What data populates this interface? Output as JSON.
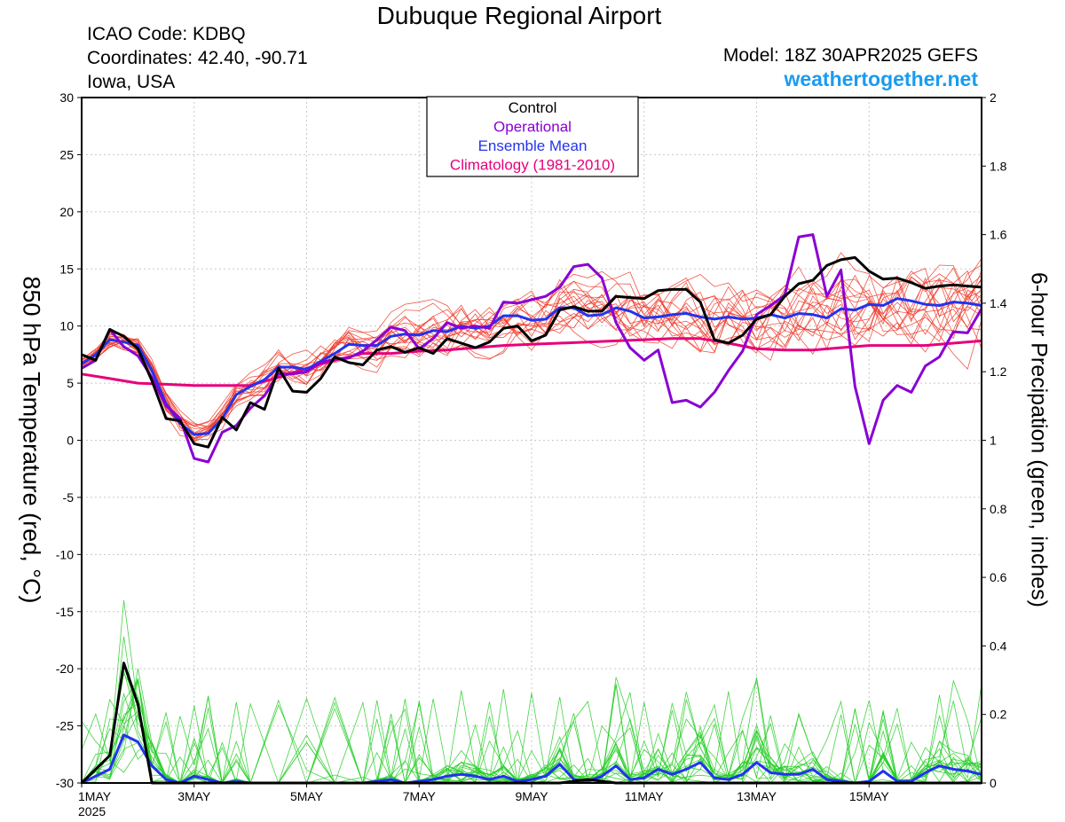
{
  "header": {
    "title": "Dubuque Regional Airport",
    "icao": "ICAO Code: KDBQ",
    "coords": "Coordinates: 42.40, -90.71",
    "region": "Iowa, USA",
    "model": "Model: 18Z 30APR2025 GEFS",
    "brand": "weathertogether.net"
  },
  "chart_data": {
    "type": "line",
    "ylabel_left": "850 hPa Temperature (red, °C)",
    "ylabel_right": "6-hour Precipation (green, inches)",
    "xlim": [
      0,
      16
    ],
    "ylim_left": [
      -30,
      30
    ],
    "ylim_right": [
      0,
      2
    ],
    "x_ticks": [
      {
        "x": 0,
        "label": "1MAY",
        "sub": "2025"
      },
      {
        "x": 2,
        "label": "3MAY"
      },
      {
        "x": 4,
        "label": "5MAY"
      },
      {
        "x": 6,
        "label": "7MAY"
      },
      {
        "x": 8,
        "label": "9MAY"
      },
      {
        "x": 10,
        "label": "11MAY"
      },
      {
        "x": 12,
        "label": "13MAY"
      },
      {
        "x": 14,
        "label": "15MAY"
      }
    ],
    "y_ticks_left": [
      "30",
      "25",
      "20",
      "15",
      "10",
      "5",
      "0",
      "-5",
      "-10",
      "-15",
      "-20",
      "-25",
      "-30"
    ],
    "y_ticks_right": [
      "2",
      "1.8",
      "1.6",
      "1.4",
      "1.2",
      "1",
      "0.8",
      "0.6",
      "0.4",
      "0.2",
      "0"
    ],
    "legend": [
      {
        "label": "Control",
        "color": "#000000"
      },
      {
        "label": "Operational",
        "color": "#8a00d4"
      },
      {
        "label": "Ensemble Mean",
        "color": "#2233ee"
      },
      {
        "label": "Climatology (1981-2010)",
        "color": "#e6007a"
      }
    ],
    "colors": {
      "members_temp": "#ef3a2a",
      "members_precip": "#22cc22"
    },
    "series": [
      {
        "name": "Control",
        "kind": "temperature",
        "x": [
          0,
          0.25,
          0.5,
          0.75,
          1,
          1.25,
          1.5,
          1.75,
          2,
          2.25,
          2.5,
          2.75,
          3,
          3.25,
          3.5,
          3.75,
          4,
          4.25,
          4.5,
          4.75,
          5,
          5.25,
          5.5,
          5.75,
          6,
          6.25,
          6.5,
          6.75,
          7,
          7.25,
          7.5,
          7.75,
          8,
          8.25,
          8.5,
          8.75,
          9,
          9.25,
          9.5,
          9.75,
          10,
          10.25,
          10.5,
          10.75,
          11,
          11.25,
          11.5,
          11.75,
          12,
          12.25,
          12.5,
          12.75,
          13,
          13.25,
          13.5,
          13.75,
          14,
          14.25,
          14.5,
          14.75,
          15,
          15.25,
          15.5,
          15.75,
          16
        ],
        "values": [
          7.5,
          7,
          9.7,
          9.1,
          8,
          5.2,
          1.9,
          1.7,
          -0.3,
          -0.6,
          2,
          0.9,
          3.3,
          2.7,
          6.3,
          4.3,
          4.2,
          5.4,
          7.3,
          6.8,
          6.6,
          7.9,
          8.2,
          7.7,
          8.1,
          7.6,
          8.9,
          8.5,
          8.1,
          8.6,
          9.8,
          10,
          8.7,
          9.2,
          11.4,
          11.7,
          11.3,
          11.3,
          12.6,
          12.5,
          12.4,
          13.1,
          13.2,
          13.2,
          12.1,
          8.8,
          8.5,
          9.2,
          10.6,
          11,
          12.6,
          13.7,
          14,
          15.3,
          15.8,
          16,
          14.8,
          14.1,
          14.2,
          13.8,
          13.3,
          13.5,
          13.6,
          13.5,
          13.4
        ]
      },
      {
        "name": "Operational",
        "kind": "temperature",
        "x": [
          0,
          0.25,
          0.5,
          0.75,
          1,
          1.25,
          1.5,
          1.75,
          2,
          2.25,
          2.5,
          2.75,
          3,
          3.25,
          3.5,
          3.75,
          4,
          4.25,
          4.5,
          4.75,
          5,
          5.25,
          5.5,
          5.75,
          6,
          6.25,
          6.5,
          6.75,
          7,
          7.25,
          7.5,
          7.75,
          8,
          8.25,
          8.5,
          8.75,
          9,
          9.25,
          9.5,
          9.75,
          10,
          10.25,
          10.5,
          10.75,
          11,
          11.25,
          11.5,
          11.75,
          12,
          12.25,
          12.5,
          12.75,
          13,
          13.25,
          13.5,
          13.75,
          14,
          14.25,
          14.5,
          14.75,
          15,
          15.25,
          15.5,
          15.75,
          16
        ],
        "values": [
          6.3,
          7,
          9.7,
          8.2,
          7.4,
          5.5,
          3,
          1.9,
          -1.6,
          -1.9,
          0.7,
          1.3,
          2.8,
          3.9,
          5.8,
          5.8,
          6,
          6.8,
          7.1,
          7.2,
          7.8,
          8.8,
          9.9,
          9.6,
          8,
          8.9,
          10.3,
          9.8,
          10,
          9.8,
          12.1,
          12,
          12.3,
          12.6,
          13.4,
          15.2,
          15.4,
          14.2,
          10.3,
          8.1,
          7,
          7.9,
          3.3,
          3.5,
          2.9,
          4.2,
          6.1,
          7.8,
          11,
          11.8,
          12.7,
          17.8,
          18,
          12.6,
          14.9,
          4.7,
          -0.3,
          3.5,
          4.8,
          4.2,
          6.5,
          7.3,
          9.5,
          9.4,
          11.5
        ]
      },
      {
        "name": "Ensemble Mean",
        "kind": "temperature",
        "x": [
          0,
          0.25,
          0.5,
          0.75,
          1,
          1.25,
          1.5,
          1.75,
          2,
          2.25,
          2.5,
          2.75,
          3,
          3.25,
          3.5,
          3.75,
          4,
          4.25,
          4.5,
          4.75,
          5,
          5.25,
          5.5,
          5.75,
          6,
          6.25,
          6.5,
          6.75,
          7,
          7.25,
          7.5,
          7.75,
          8,
          8.25,
          8.5,
          8.75,
          9,
          9.25,
          9.5,
          9.75,
          10,
          10.25,
          10.5,
          10.75,
          11,
          11.25,
          11.5,
          11.75,
          12,
          12.25,
          12.5,
          12.75,
          13,
          13.25,
          13.5,
          13.75,
          14,
          14.25,
          14.5,
          14.75,
          15,
          15.25,
          15.5,
          15.75,
          16
        ],
        "values": [
          6.7,
          7.5,
          8.8,
          8.6,
          8.3,
          6.1,
          3.2,
          1.5,
          0.5,
          0.6,
          1.9,
          4,
          4.7,
          5.3,
          6.4,
          6.4,
          6.2,
          6.9,
          7.6,
          8.4,
          8.3,
          8.3,
          9.1,
          9.3,
          9.2,
          9.6,
          9.5,
          10,
          9.8,
          10,
          10.9,
          10.9,
          10.5,
          10.6,
          11.6,
          11.6,
          10.9,
          11,
          11.6,
          11.3,
          10.7,
          10.8,
          11,
          11.1,
          10.8,
          10.6,
          10.8,
          10.6,
          10.7,
          11,
          10.7,
          11.1,
          11,
          10.7,
          11.5,
          11.4,
          11.9,
          11.8,
          12.4,
          12.2,
          11.9,
          11.8,
          12.1,
          12,
          11.8
        ]
      },
      {
        "name": "Climatology (1981-2010)",
        "kind": "temperature",
        "x": [
          0,
          0.5,
          1,
          1.5,
          2,
          2.5,
          3,
          3.5,
          4,
          4.5,
          5,
          5.5,
          6,
          6.5,
          7,
          7.5,
          8,
          8.5,
          9,
          9.5,
          10,
          10.5,
          11,
          11.5,
          12,
          12.5,
          13,
          13.5,
          14,
          14.5,
          15,
          15.5,
          16
        ],
        "values": [
          5.8,
          5.4,
          5,
          4.9,
          4.8,
          4.8,
          4.8,
          5.5,
          6.3,
          7,
          7.6,
          7.6,
          7.8,
          7.9,
          8.1,
          8.3,
          8.4,
          8.5,
          8.6,
          8.7,
          8.8,
          8.9,
          8.9,
          8.5,
          8,
          7.9,
          7.9,
          8.1,
          8.3,
          8.3,
          8.3,
          8.5,
          8.7
        ]
      },
      {
        "name": "Control",
        "kind": "precipitation",
        "x": [
          0,
          0.25,
          0.5,
          0.75,
          1,
          1.25,
          1.5,
          1.75,
          2,
          2.5,
          3,
          3.5,
          4,
          4.5,
          5,
          5.5,
          6,
          6.5,
          7,
          7.5,
          8,
          8.5,
          9,
          9.5,
          10,
          10.5,
          11,
          11.5,
          12,
          12.5,
          13,
          13.5,
          14,
          14.5,
          15,
          15.5,
          16
        ],
        "values": [
          0,
          0.04,
          0.08,
          0.35,
          0.23,
          0,
          0,
          0,
          0,
          0,
          0,
          0,
          0,
          0,
          0,
          0,
          0,
          0,
          0,
          0,
          0,
          0,
          0.01,
          0,
          0,
          0,
          0,
          0,
          0,
          0,
          0,
          0,
          0,
          0,
          0,
          0,
          0
        ]
      },
      {
        "name": "Ensemble Mean",
        "kind": "precipitation",
        "x": [
          0,
          0.25,
          0.5,
          0.75,
          1,
          1.25,
          1.5,
          1.75,
          2,
          2.25,
          2.5,
          2.75,
          3,
          3.5,
          4,
          4.5,
          5,
          5.25,
          5.5,
          5.75,
          6,
          6.25,
          6.5,
          6.75,
          7,
          7.25,
          7.5,
          7.75,
          8,
          8.25,
          8.5,
          8.75,
          9,
          9.25,
          9.5,
          9.75,
          10,
          10.25,
          10.5,
          10.75,
          11,
          11.25,
          11.5,
          11.75,
          12,
          12.25,
          12.5,
          12.75,
          13,
          13.25,
          13.5,
          13.75,
          14,
          14.25,
          14.5,
          14.75,
          15,
          15.25,
          15.5,
          15.75,
          16
        ],
        "values": [
          0,
          0.02,
          0.04,
          0.14,
          0.12,
          0.05,
          0.01,
          0,
          0.02,
          0.01,
          0,
          0.005,
          0,
          0,
          0,
          0,
          0,
          0.005,
          0.01,
          0,
          0.005,
          0.01,
          0.02,
          0.025,
          0.02,
          0.01,
          0.02,
          0.005,
          0.01,
          0.02,
          0.055,
          0.01,
          0.005,
          0.02,
          0.05,
          0.01,
          0.015,
          0.04,
          0.025,
          0.04,
          0.06,
          0.015,
          0.01,
          0.025,
          0.06,
          0.03,
          0.025,
          0.025,
          0.04,
          0.01,
          0.005,
          0,
          0.005,
          0.035,
          0.005,
          0.005,
          0.03,
          0.05,
          0.04,
          0.035,
          0.025
        ]
      }
    ]
  }
}
